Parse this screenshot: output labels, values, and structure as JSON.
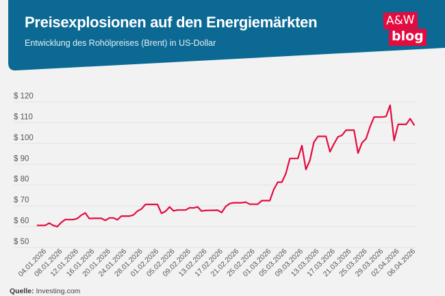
{
  "header": {
    "title": "Preisexplosionen auf den Energiemärkten",
    "subtitle": "Entwicklung des Rohölpreises (Brent) in US-Dollar",
    "background_color": "#0b6994"
  },
  "logo": {
    "line1": "A&W",
    "line2": "blog",
    "color": "#e30b3f"
  },
  "source": {
    "label": "Quelle:",
    "value": "Investing.com"
  },
  "chart_data": {
    "type": "line",
    "title": "",
    "xlabel": "",
    "ylabel": "",
    "ylim": [
      50,
      120
    ],
    "yticks": [
      50,
      60,
      70,
      80,
      90,
      100,
      110,
      120
    ],
    "ytick_labels": [
      "$ 50",
      "$ 60",
      "$ 70",
      "$ 80",
      "$ 90",
      "$ 100",
      "$ 110",
      "$ 120"
    ],
    "xlim": [
      "02.01.2026",
      "06.04.2026"
    ],
    "xtick_labels": [
      "04.01.2026",
      "08.01.2026",
      "12.01.2026",
      "16.01.2026",
      "20.01.2026",
      "24.01.2026",
      "28.01.2026",
      "01.02.2026",
      "05.02.2026",
      "09.02.2026",
      "13.02.2026",
      "17.02.2026",
      "21.02.2026",
      "25.02.2026",
      "01.03.2026",
      "05.03.2026",
      "09.03.2026",
      "13.03.2026",
      "17.03.2026",
      "21.03.2026",
      "25.03.2026",
      "29.03.2026",
      "02.04.2026",
      "06.04.2026"
    ],
    "grid": true,
    "line_color": "#e30b3f",
    "series": [
      {
        "points": [
          [
            "02.01.2026",
            60.6
          ],
          [
            "04.01.2026",
            60.6
          ],
          [
            "05.01.2026",
            61.7
          ],
          [
            "06.01.2026",
            60.6
          ],
          [
            "07.01.2026",
            60.0
          ],
          [
            "08.01.2026",
            62.0
          ],
          [
            "09.01.2026",
            63.4
          ],
          [
            "11.01.2026",
            63.4
          ],
          [
            "12.01.2026",
            63.9
          ],
          [
            "13.01.2026",
            65.5
          ],
          [
            "14.01.2026",
            66.6
          ],
          [
            "15.01.2026",
            63.9
          ],
          [
            "16.01.2026",
            64.0
          ],
          [
            "18.01.2026",
            64.0
          ],
          [
            "19.01.2026",
            63.0
          ],
          [
            "20.01.2026",
            64.2
          ],
          [
            "21.01.2026",
            64.2
          ],
          [
            "22.01.2026",
            63.3
          ],
          [
            "23.01.2026",
            65.1
          ],
          [
            "25.01.2026",
            65.1
          ],
          [
            "26.01.2026",
            65.6
          ],
          [
            "27.01.2026",
            67.5
          ],
          [
            "28.01.2026",
            68.5
          ],
          [
            "29.01.2026",
            70.7
          ],
          [
            "01.02.2026",
            70.7
          ],
          [
            "02.02.2026",
            66.4
          ],
          [
            "03.02.2026",
            67.4
          ],
          [
            "04.02.2026",
            69.5
          ],
          [
            "05.02.2026",
            67.6
          ],
          [
            "06.02.2026",
            68.0
          ],
          [
            "08.02.2026",
            68.0
          ],
          [
            "09.02.2026",
            69.1
          ],
          [
            "10.02.2026",
            69.0
          ],
          [
            "11.02.2026",
            69.5
          ],
          [
            "12.02.2026",
            67.5
          ],
          [
            "13.02.2026",
            67.8
          ],
          [
            "16.02.2026",
            67.9
          ],
          [
            "17.02.2026",
            66.8
          ],
          [
            "18.02.2026",
            69.7
          ],
          [
            "19.02.2026",
            71.1
          ],
          [
            "20.02.2026",
            71.5
          ],
          [
            "22.02.2026",
            71.5
          ],
          [
            "23.02.2026",
            71.8
          ],
          [
            "24.02.2026",
            70.8
          ],
          [
            "26.02.2026",
            70.8
          ],
          [
            "27.02.2026",
            72.5
          ],
          [
            "01.03.2026",
            72.5
          ],
          [
            "02.03.2026",
            77.9
          ],
          [
            "03.03.2026",
            81.4
          ],
          [
            "04.03.2026",
            81.4
          ],
          [
            "05.03.2026",
            85.5
          ],
          [
            "06.03.2026",
            92.8
          ],
          [
            "08.03.2026",
            92.8
          ],
          [
            "09.03.2026",
            99.0
          ],
          [
            "10.03.2026",
            87.5
          ],
          [
            "11.03.2026",
            91.9
          ],
          [
            "12.03.2026",
            100.6
          ],
          [
            "13.03.2026",
            103.4
          ],
          [
            "15.03.2026",
            103.4
          ],
          [
            "16.03.2026",
            96.0
          ],
          [
            "17.03.2026",
            99.8
          ],
          [
            "18.03.2026",
            103.2
          ],
          [
            "19.03.2026",
            103.9
          ],
          [
            "20.03.2026",
            106.4
          ],
          [
            "22.03.2026",
            106.4
          ],
          [
            "23.03.2026",
            95.4
          ],
          [
            "24.03.2026",
            100.3
          ],
          [
            "25.03.2026",
            102.3
          ],
          [
            "26.03.2026",
            108.1
          ],
          [
            "27.03.2026",
            112.7
          ],
          [
            "29.03.2026",
            112.7
          ],
          [
            "30.03.2026",
            113.0
          ],
          [
            "31.03.2026",
            118.4
          ],
          [
            "01.04.2026",
            101.4
          ],
          [
            "02.04.2026",
            109.2
          ],
          [
            "04.04.2026",
            109.2
          ],
          [
            "05.04.2026",
            111.9
          ],
          [
            "06.04.2026",
            108.8
          ]
        ]
      }
    ]
  }
}
